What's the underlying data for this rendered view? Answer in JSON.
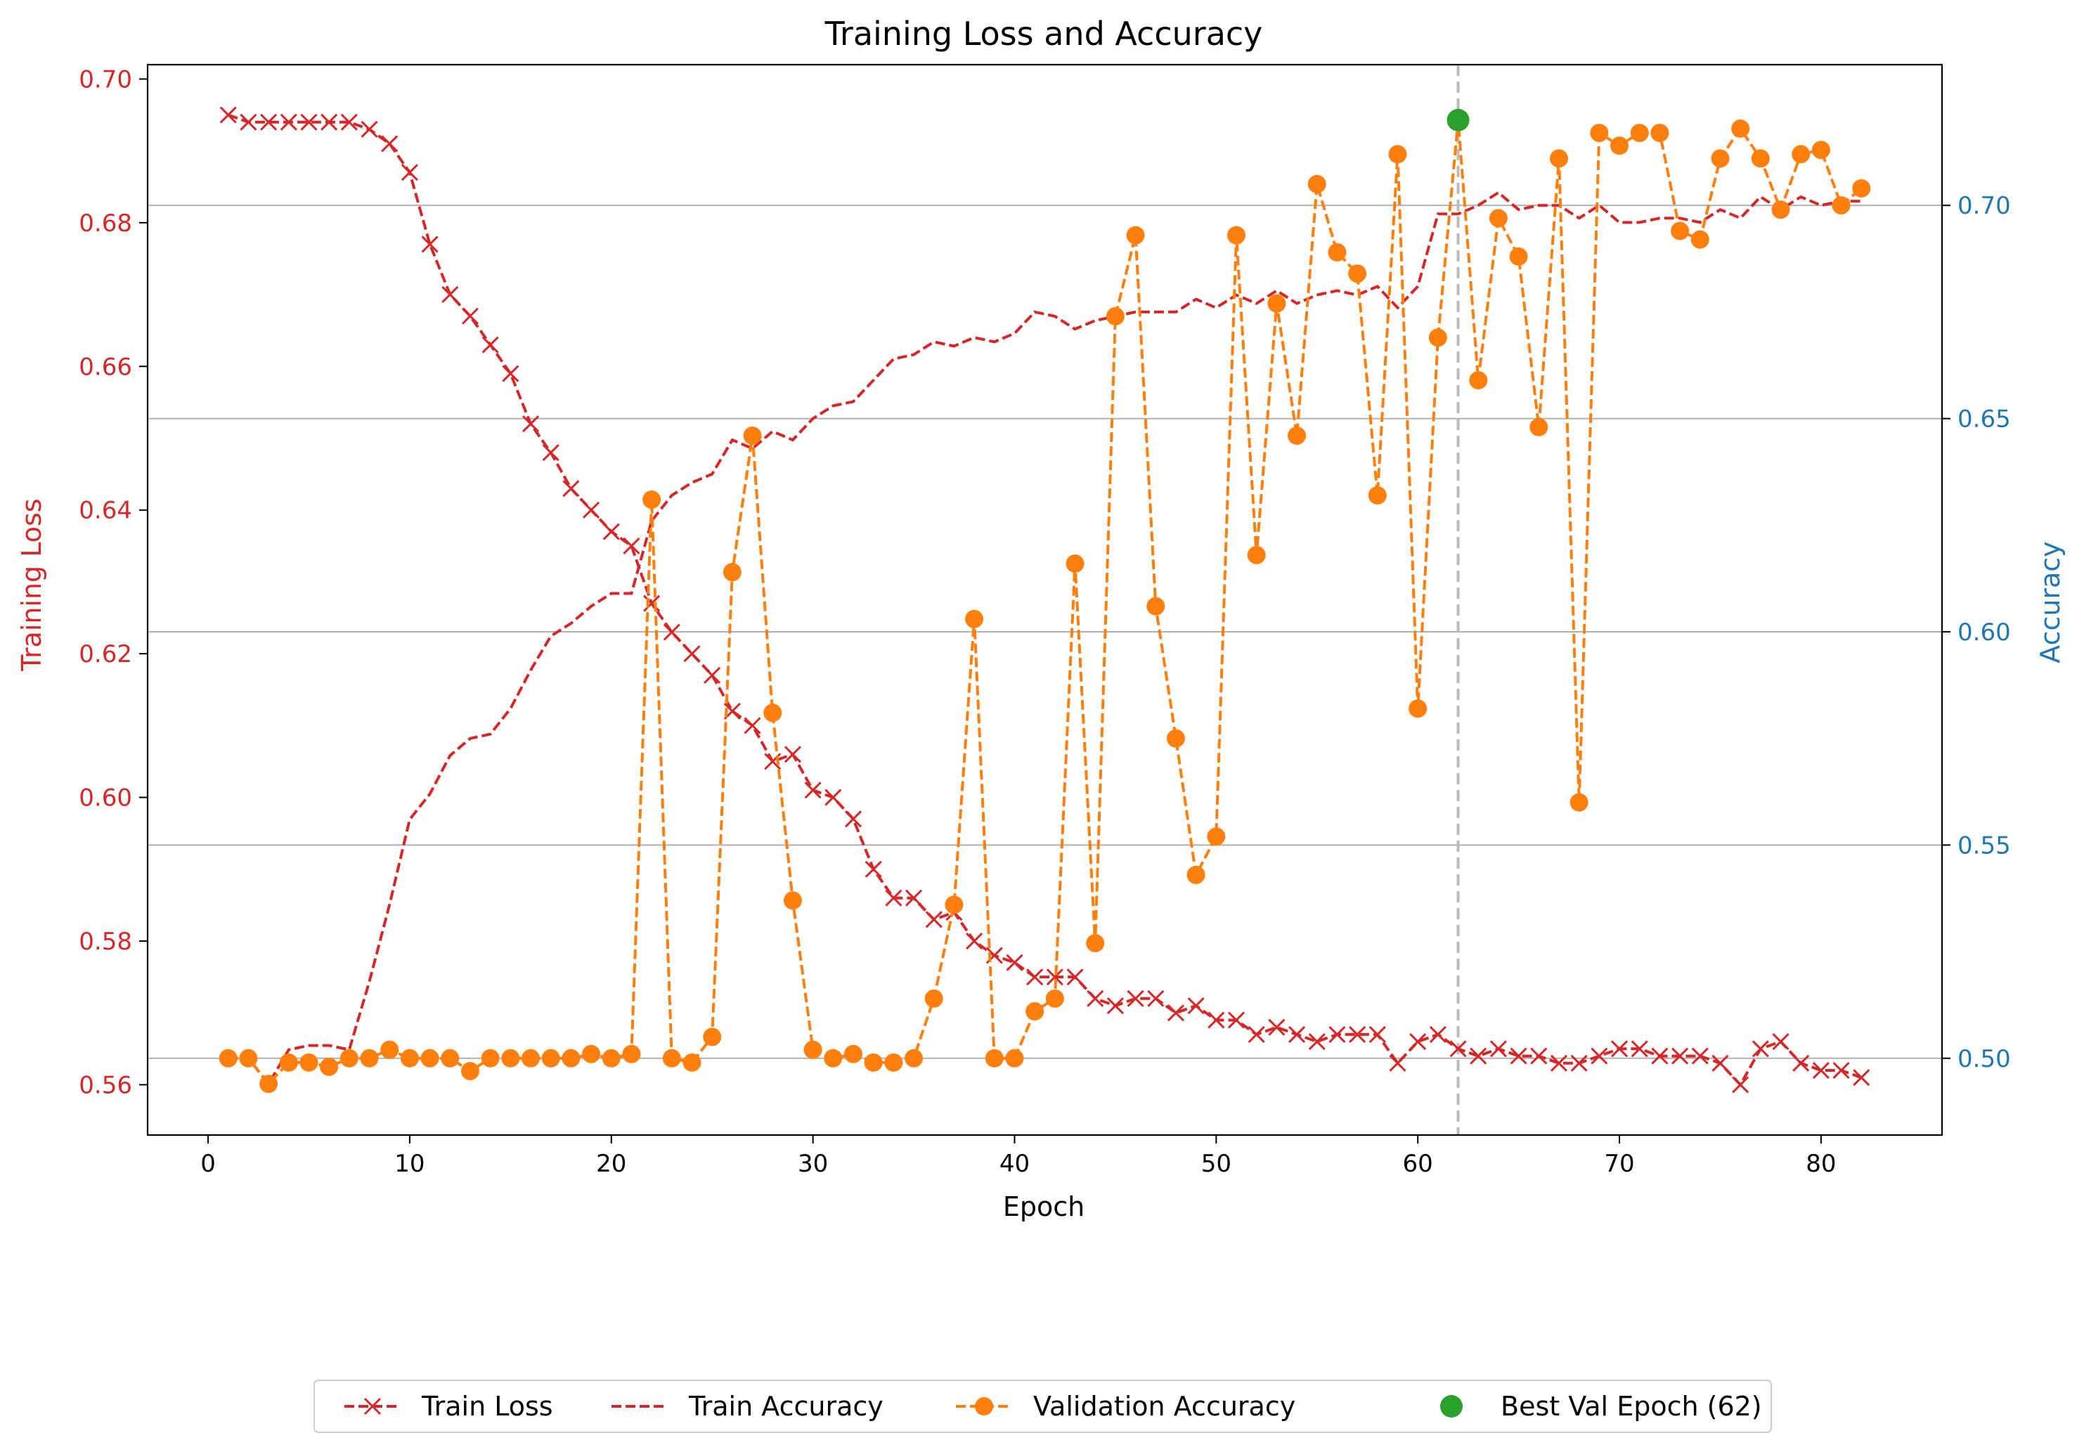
{
  "chart_data": {
    "type": "line",
    "title": "Training Loss and Accuracy",
    "xlabel": "Epoch",
    "ylabel_left": "Training Loss",
    "ylabel_right": "Accuracy",
    "xlim": [
      -3,
      86
    ],
    "ylim_left": [
      0.553,
      0.702
    ],
    "ylim_right": [
      0.482,
      0.733
    ],
    "x_ticks": [
      0,
      10,
      20,
      30,
      40,
      50,
      60,
      70,
      80
    ],
    "y_ticks_left": [
      0.56,
      0.58,
      0.6,
      0.62,
      0.64,
      0.66,
      0.68,
      0.7
    ],
    "y_ticks_right": [
      0.5,
      0.55,
      0.6,
      0.65,
      0.7
    ],
    "grid": "horizontal lines at right-axis ticks",
    "legend_position": "bottom-center",
    "colors": {
      "loss": "#d62728",
      "train_accuracy": "#d62728",
      "validation": "#ff7f0e",
      "best": "#2ca02c",
      "vline": "#bbbbbb",
      "left_axis": "#d62728",
      "right_axis": "#1f77b4",
      "grid": "#b0b0b0"
    },
    "series": [
      {
        "name": "Train Loss",
        "axis": "left",
        "style": "dashed-x-marker",
        "x": [
          1,
          2,
          3,
          4,
          5,
          6,
          7,
          8,
          9,
          10,
          11,
          12,
          13,
          14,
          15,
          16,
          17,
          18,
          19,
          20,
          21,
          22,
          23,
          24,
          25,
          26,
          27,
          28,
          29,
          30,
          31,
          32,
          33,
          34,
          35,
          36,
          37,
          38,
          39,
          40,
          41,
          42,
          43,
          44,
          45,
          46,
          47,
          48,
          49,
          50,
          51,
          52,
          53,
          54,
          55,
          56,
          57,
          58,
          59,
          60,
          61,
          62,
          63,
          64,
          65,
          66,
          67,
          68,
          69,
          70,
          71,
          72,
          73,
          74,
          75,
          76,
          77,
          78,
          79,
          80,
          81,
          82
        ],
        "values": [
          0.695,
          0.694,
          0.694,
          0.694,
          0.694,
          0.694,
          0.694,
          0.693,
          0.691,
          0.687,
          0.677,
          0.67,
          0.667,
          0.663,
          0.659,
          0.652,
          0.648,
          0.643,
          0.64,
          0.637,
          0.635,
          0.627,
          0.623,
          0.62,
          0.617,
          0.612,
          0.61,
          0.605,
          0.606,
          0.601,
          0.6,
          0.597,
          0.59,
          0.586,
          0.586,
          0.583,
          0.584,
          0.58,
          0.578,
          0.577,
          0.575,
          0.575,
          0.575,
          0.572,
          0.571,
          0.572,
          0.572,
          0.57,
          0.571,
          0.569,
          0.569,
          0.567,
          0.568,
          0.567,
          0.566,
          0.567,
          0.567,
          0.567,
          0.563,
          0.566,
          0.567,
          0.565,
          0.564,
          0.565,
          0.564,
          0.564,
          0.563,
          0.563,
          0.564,
          0.565,
          0.565,
          0.564,
          0.564,
          0.564,
          0.563,
          0.56,
          0.565,
          0.566,
          0.563,
          0.562,
          0.562,
          0.561
        ]
      },
      {
        "name": "Train Accuracy",
        "axis": "right",
        "style": "dashed",
        "x": [
          1,
          2,
          3,
          4,
          5,
          6,
          7,
          8,
          9,
          10,
          11,
          12,
          13,
          14,
          15,
          16,
          17,
          18,
          19,
          20,
          21,
          22,
          23,
          24,
          25,
          26,
          27,
          28,
          29,
          30,
          31,
          32,
          33,
          34,
          35,
          36,
          37,
          38,
          39,
          40,
          41,
          42,
          43,
          44,
          45,
          46,
          47,
          48,
          49,
          50,
          51,
          52,
          53,
          54,
          55,
          56,
          57,
          58,
          59,
          60,
          61,
          62,
          63,
          64,
          65,
          66,
          67,
          68,
          69,
          70,
          71,
          72,
          73,
          74,
          75,
          76,
          77,
          78,
          79,
          80,
          81,
          82
        ],
        "values": [
          0.5,
          0.5,
          0.494,
          0.502,
          0.503,
          0.503,
          0.502,
          0.518,
          0.536,
          0.556,
          0.562,
          0.571,
          0.575,
          0.576,
          0.582,
          0.591,
          0.599,
          0.602,
          0.606,
          0.609,
          0.609,
          0.626,
          0.632,
          0.635,
          0.637,
          0.645,
          0.643,
          0.647,
          0.645,
          0.65,
          0.653,
          0.654,
          0.659,
          0.664,
          0.665,
          0.668,
          0.667,
          0.669,
          0.668,
          0.67,
          0.675,
          0.674,
          0.671,
          0.673,
          0.674,
          0.675,
          0.675,
          0.675,
          0.678,
          0.676,
          0.679,
          0.677,
          0.68,
          0.677,
          0.679,
          0.68,
          0.679,
          0.681,
          0.676,
          0.681,
          0.698,
          0.698,
          0.7,
          0.703,
          0.699,
          0.7,
          0.7,
          0.697,
          0.7,
          0.696,
          0.696,
          0.697,
          0.697,
          0.696,
          0.699,
          0.697,
          0.702,
          0.699,
          0.702,
          0.7,
          0.701,
          0.701
        ]
      },
      {
        "name": "Validation Accuracy",
        "axis": "right",
        "style": "dashed-circle-marker",
        "x": [
          1,
          2,
          3,
          4,
          5,
          6,
          7,
          8,
          9,
          10,
          11,
          12,
          13,
          14,
          15,
          16,
          17,
          18,
          19,
          20,
          21,
          22,
          23,
          24,
          25,
          26,
          27,
          28,
          29,
          30,
          31,
          32,
          33,
          34,
          35,
          36,
          37,
          38,
          39,
          40,
          41,
          42,
          43,
          44,
          45,
          46,
          47,
          48,
          49,
          50,
          51,
          52,
          53,
          54,
          55,
          56,
          57,
          58,
          59,
          60,
          61,
          62,
          63,
          64,
          65,
          66,
          67,
          68,
          69,
          70,
          71,
          72,
          73,
          74,
          75,
          76,
          77,
          78,
          79,
          80,
          81,
          82
        ],
        "values": [
          0.5,
          0.5,
          0.494,
          0.499,
          0.499,
          0.498,
          0.5,
          0.5,
          0.502,
          0.5,
          0.5,
          0.5,
          0.497,
          0.5,
          0.5,
          0.5,
          0.5,
          0.5,
          0.501,
          0.5,
          0.501,
          0.631,
          0.5,
          0.499,
          0.505,
          0.614,
          0.646,
          0.581,
          0.537,
          0.502,
          0.5,
          0.501,
          0.499,
          0.499,
          0.5,
          0.514,
          0.536,
          0.603,
          0.5,
          0.5,
          0.511,
          0.514,
          0.616,
          0.527,
          0.674,
          0.693,
          0.606,
          0.575,
          0.543,
          0.552,
          0.693,
          0.618,
          0.677,
          0.646,
          0.705,
          0.689,
          0.684,
          0.632,
          0.712,
          0.582,
          0.669,
          0.72,
          0.659,
          0.697,
          0.688,
          0.648,
          0.711,
          0.56,
          0.717,
          0.714,
          0.717,
          0.717,
          0.694,
          0.692,
          0.711,
          0.718,
          0.711,
          0.699,
          0.712,
          0.713,
          0.7,
          0.704
        ]
      },
      {
        "name": "Best Val Epoch (62)",
        "axis": "right",
        "style": "point",
        "x": [
          62
        ],
        "values": [
          0.72
        ]
      }
    ],
    "annotations": {
      "best_epoch_vline_x": 62
    }
  },
  "legend": {
    "items": [
      {
        "label": "Train Loss",
        "key": "loss"
      },
      {
        "label": "Train Accuracy",
        "key": "train_accuracy"
      },
      {
        "label": "Validation Accuracy",
        "key": "validation"
      },
      {
        "label": "Best Val Epoch (62)",
        "key": "best"
      }
    ]
  }
}
